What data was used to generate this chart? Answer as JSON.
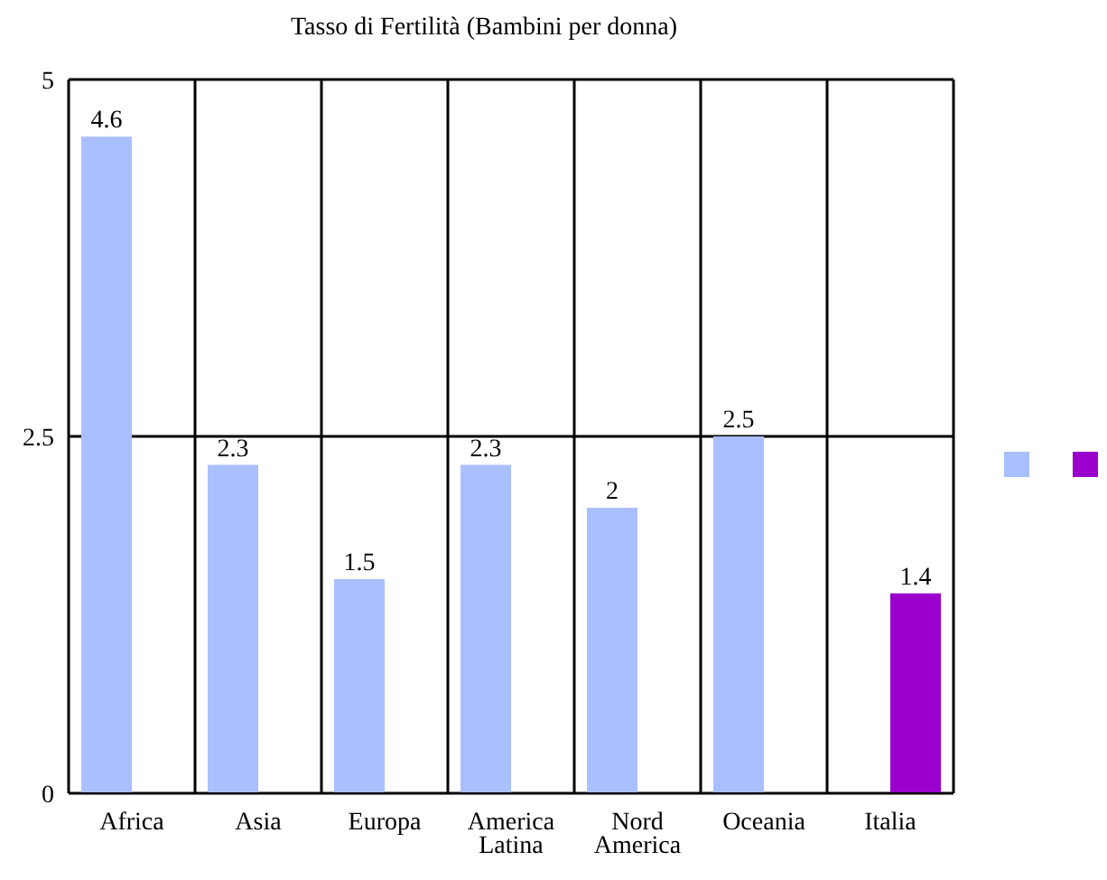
{
  "chart_data": {
    "type": "bar",
    "title": "Tasso di Fertilità (Bambini per donna)",
    "categories": [
      "Africa",
      "Asia",
      "Europa",
      "America Latina",
      "Nord America",
      "Oceania",
      "Italia"
    ],
    "series": [
      {
        "color": "#a9bfff",
        "values": [
          4.6,
          2.3,
          1.5,
          2.3,
          2,
          2.5,
          null
        ]
      },
      {
        "color": "#9900cc",
        "values": [
          null,
          null,
          null,
          null,
          null,
          null,
          1.4
        ]
      }
    ],
    "ylim": [
      0,
      5
    ],
    "yticks": [
      0,
      2.5,
      5
    ],
    "grid": true,
    "data_labels": true
  }
}
